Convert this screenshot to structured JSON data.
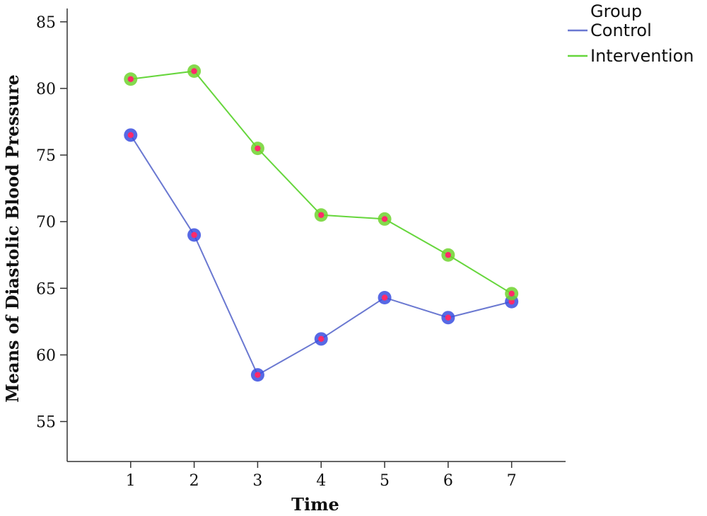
{
  "chart_data": {
    "type": "line",
    "xlabel": "Time",
    "ylabel": "Means of Diastolic Blood Pressure",
    "x": [
      1,
      2,
      3,
      4,
      5,
      6,
      7
    ],
    "x_tick_labels": [
      "1",
      "2",
      "3",
      "4",
      "5",
      "6",
      "7"
    ],
    "ylim": [
      52,
      86
    ],
    "y_ticks": [
      55,
      60,
      65,
      70,
      75,
      80,
      85
    ],
    "grid": false,
    "legend": {
      "title": "Group",
      "position": "top-right"
    },
    "series": [
      {
        "name": "Control",
        "color": "#6a78d1",
        "marker_color": "#3a4fe0",
        "values": [
          76.5,
          69.0,
          58.5,
          61.2,
          64.3,
          62.8,
          64.0
        ]
      },
      {
        "name": "Intervention",
        "color": "#66d63c",
        "marker_color": "#6fd42e",
        "values": [
          80.7,
          81.3,
          75.5,
          70.5,
          70.2,
          67.5,
          64.6
        ]
      }
    ],
    "marker_center_color": "#ff2a6a"
  }
}
